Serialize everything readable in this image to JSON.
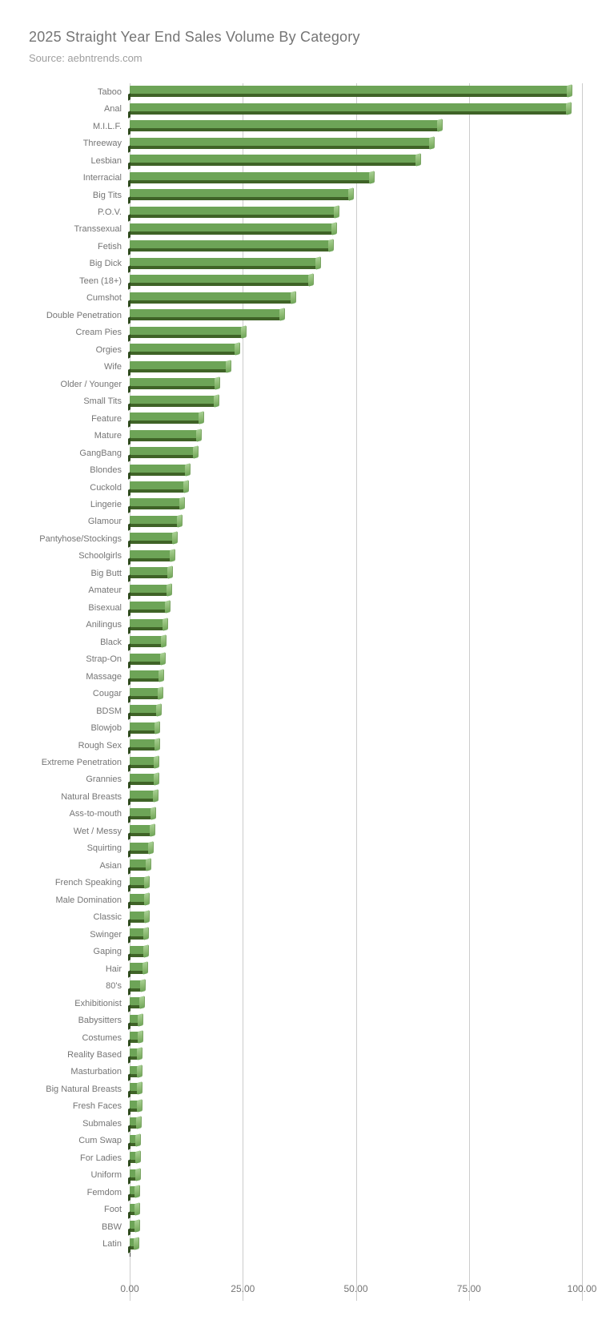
{
  "header": {
    "title": "2025 Straight Year End Sales Volume By Category",
    "source": "Source: aebntrends.com"
  },
  "colors": {
    "bar_face": "#6da457",
    "bar_shadow": "#3f6327",
    "bar_highlight": "#a8d094",
    "gridline": "#cccccc",
    "title_text": "#757575",
    "source_text": "#9e9e9e",
    "label_text": "#757575"
  },
  "chart_data": {
    "type": "bar",
    "orientation": "horizontal",
    "title": "2025 Straight Year End Sales Volume By Category",
    "subtitle": "Source: aebntrends.com",
    "xlabel": "",
    "ylabel": "",
    "xlim": [
      0,
      100
    ],
    "x_ticks": [
      "0.00",
      "25.00",
      "50.00",
      "75.00",
      "100.00"
    ],
    "x_tick_values": [
      0,
      25,
      50,
      75,
      100
    ],
    "grid": "vertical",
    "legend": "none",
    "categories": [
      "Taboo",
      "Anal",
      "M.I.L.F.",
      "Threeway",
      "Lesbian",
      "Interracial",
      "Big Tits",
      "P.O.V.",
      "Transsexual",
      "Fetish",
      "Big Dick",
      "Teen (18+)",
      "Cumshot",
      "Double Penetration",
      "Cream Pies",
      "Orgies",
      "Wife",
      "Older / Younger",
      "Small Tits",
      "Feature",
      "Mature",
      "GangBang",
      "Blondes",
      "Cuckold",
      "Lingerie",
      "Glamour",
      "Pantyhose/Stockings",
      "Schoolgirls",
      "Big Butt",
      "Amateur",
      "Bisexual",
      "Anilingus",
      "Black",
      "Strap-On",
      "Massage",
      "Cougar",
      "BDSM",
      "Blowjob",
      "Rough Sex",
      "Extreme Penetration",
      "Grannies",
      "Natural Breasts",
      "Ass-to-mouth",
      "Wet / Messy",
      "Squirting",
      "Asian",
      "French Speaking",
      "Male Domination",
      "Classic",
      "Swinger",
      "Gaping",
      "Hair",
      "80's",
      "Exhibitionist",
      "Babysitters",
      "Costumes",
      "Reality Based",
      "Masturbation",
      "Big Natural Breasts",
      "Fresh Faces",
      "Submales",
      "Cum Swap",
      "For Ladies",
      "Uniform",
      "Femdom",
      "Foot",
      "BBW",
      "Latin"
    ],
    "values": [
      96.9,
      96.8,
      68.3,
      66.5,
      63.6,
      53.2,
      48.6,
      45.4,
      45.0,
      44.2,
      41.4,
      39.9,
      35.9,
      33.5,
      24.9,
      23.5,
      21.5,
      19.1,
      18.9,
      15.5,
      15.0,
      14.4,
      12.5,
      12.2,
      11.3,
      10.7,
      9.8,
      9.2,
      8.6,
      8.5,
      8.1,
      7.6,
      7.3,
      7.1,
      6.7,
      6.5,
      6.2,
      5.9,
      5.8,
      5.7,
      5.6,
      5.4,
      4.9,
      4.8,
      4.4,
      3.9,
      3.6,
      3.5,
      3.5,
      3.4,
      3.3,
      3.2,
      2.6,
      2.4,
      2.2,
      2.1,
      2.0,
      1.95,
      1.9,
      1.85,
      1.7,
      1.6,
      1.55,
      1.5,
      1.45,
      1.4,
      1.35,
      1.2
    ]
  }
}
